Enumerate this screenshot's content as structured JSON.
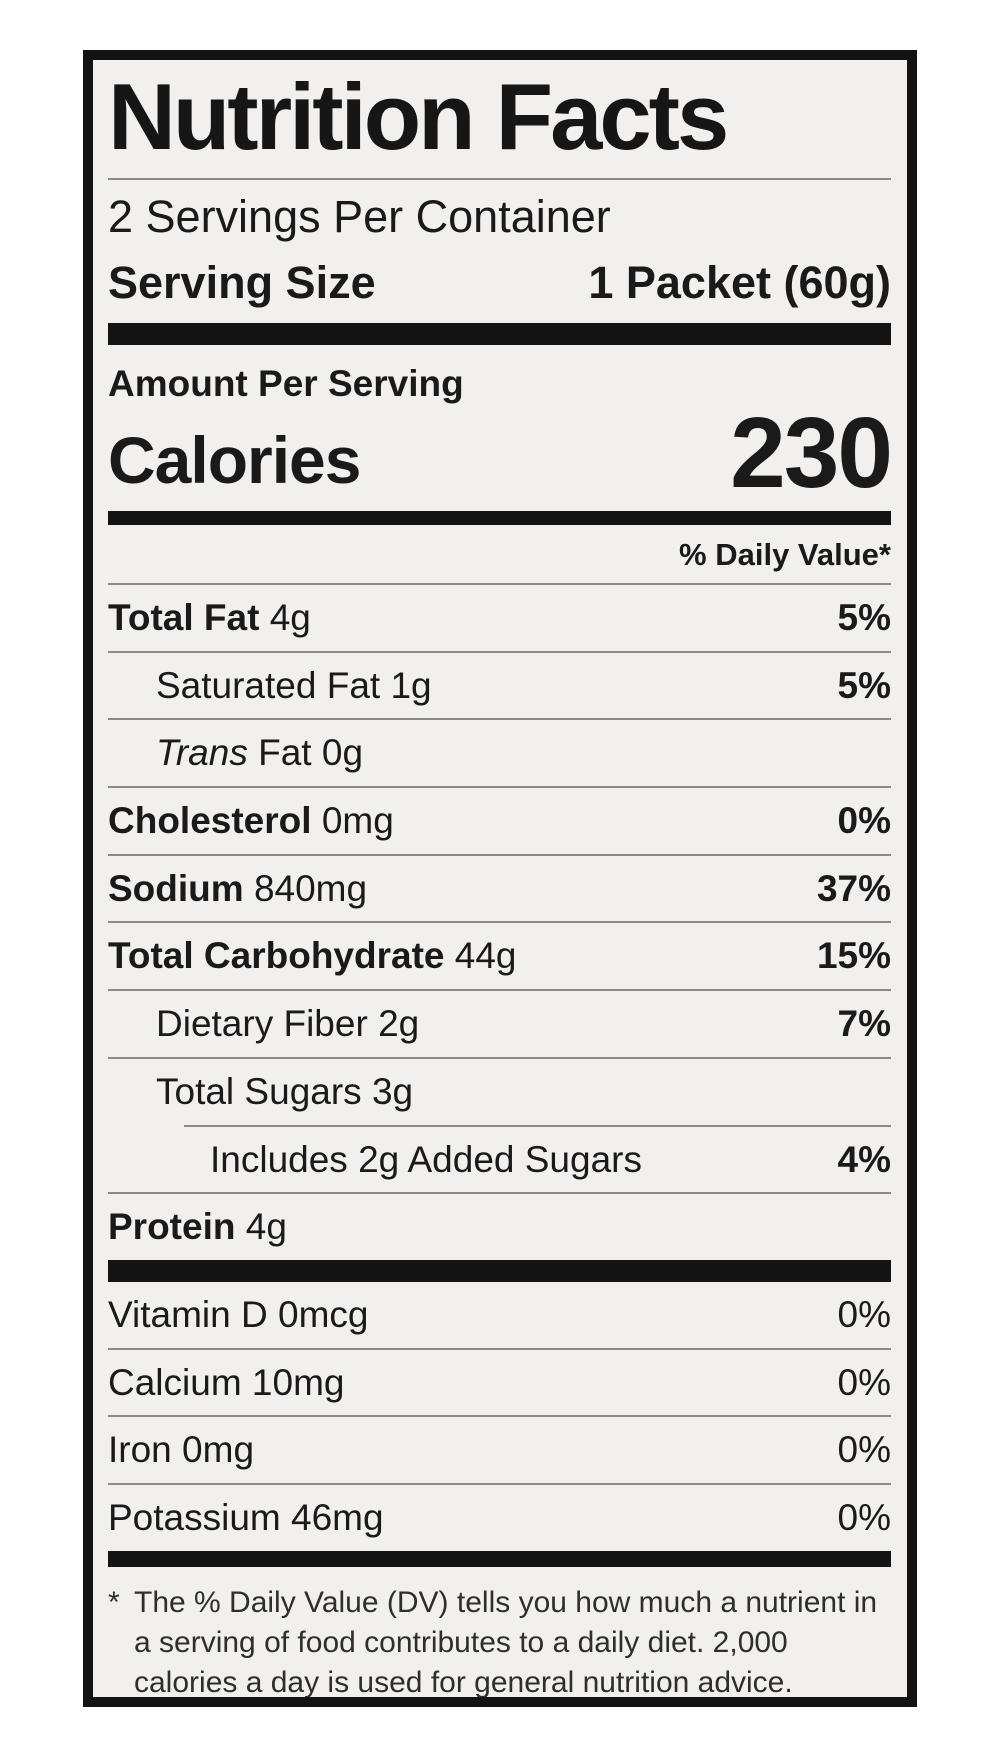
{
  "colors": {
    "label_background": "#f1f0ef",
    "page_background": "#ffffff",
    "ink": "#1a1a1a",
    "thick_bar": "#141414",
    "separator": "#8a8a8a"
  },
  "header": {
    "title": "Nutrition Facts",
    "servings_per_container": "2 Servings Per Container",
    "serving_size_label": "Serving Size",
    "serving_size_value": "1 Packet (60g)"
  },
  "calories": {
    "amount_per_serving": "Amount Per Serving",
    "label": "Calories",
    "value": "230"
  },
  "daily_value_header": "% Daily Value*",
  "nutrients": [
    {
      "name": "Total Fat",
      "amount": "4g",
      "dv": "5%"
    },
    {
      "name": "Saturated Fat",
      "amount": "1g",
      "dv": "5%"
    },
    {
      "name_italic": "Trans",
      "name_rest": "Fat",
      "amount": "0g",
      "dv": ""
    },
    {
      "name": "Cholesterol",
      "amount": "0mg",
      "dv": "0%"
    },
    {
      "name": "Sodium",
      "amount": "840mg",
      "dv": "37%"
    },
    {
      "name": "Total Carbohydrate",
      "amount": "44g",
      "dv": "15%"
    },
    {
      "name": "Dietary Fiber",
      "amount": "2g",
      "dv": "7%"
    },
    {
      "name": "Total Sugars",
      "amount": "3g",
      "dv": ""
    },
    {
      "name": "Includes 2g Added Sugars",
      "amount": "",
      "dv": "4%"
    },
    {
      "name": "Protein",
      "amount": "4g",
      "dv": ""
    }
  ],
  "vitamins": [
    {
      "name": "Vitamin D",
      "amount": "0mcg",
      "dv": "0%"
    },
    {
      "name": "Calcium",
      "amount": "10mg",
      "dv": "0%"
    },
    {
      "name": "Iron",
      "amount": "0mg",
      "dv": "0%"
    },
    {
      "name": "Potassium",
      "amount": "46mg",
      "dv": "0%"
    }
  ],
  "footnote": {
    "marker": "*",
    "text": "The % Daily Value (DV) tells you how much a nutrient in a serving of food contributes to a daily diet. 2,000 calories a day is used for general nutrition advice."
  }
}
